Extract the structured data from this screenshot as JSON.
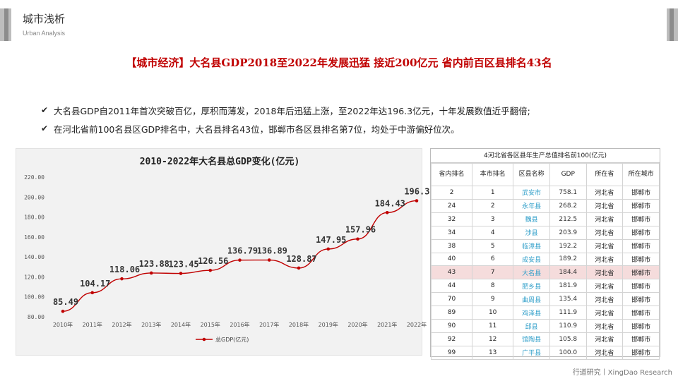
{
  "header": {
    "title": "城市浅析",
    "subtitle": "Urban Analysis"
  },
  "headline": "【城市经济】大名县GDP2018至2022年发展迅猛 接近200亿元 省内前百区县排名43名",
  "bullets": [
    "大名县GDP自2011年首次突破百亿，厚积而薄发，2018年后迅猛上涨，至2022年达196.3亿元，十年发展数值近乎翻倍;",
    "在河北省前100名县区GDP排名中，大名县排名43位，邯郸市各区县排名第7位，均处于中游偏好位次。"
  ],
  "chart_data": {
    "type": "line",
    "title": "2010-2022年大名县总GDP变化(亿元)",
    "categories": [
      "2010年",
      "2011年",
      "2012年",
      "2013年",
      "2014年",
      "2015年",
      "2016年",
      "2017年",
      "2018年",
      "2019年",
      "2020年",
      "2021年",
      "2022年"
    ],
    "series": [
      {
        "name": "总GDP(亿元)",
        "values": [
          85.49,
          104.17,
          118.06,
          123.88,
          123.45,
          126.56,
          136.79,
          136.89,
          128.87,
          147.95,
          157.96,
          184.43,
          196.3
        ]
      }
    ],
    "value_labels": [
      "85.49",
      "104.17",
      "118.06",
      "123.88",
      "123.45",
      "126.56",
      "136.79",
      "136.89",
      "128.87",
      "147.95",
      "157.96",
      "184.43",
      "196.30"
    ],
    "yticks": [
      "80.00",
      "100.00",
      "120.00",
      "140.00",
      "160.00",
      "180.00",
      "200.00",
      "220.00"
    ],
    "ylim": [
      80,
      220
    ],
    "legend": "bottom",
    "color": "#c00000"
  },
  "table": {
    "title": "4河北省各区县年生产总值排名前100(亿元)",
    "headers": [
      "省内排名",
      "本市排名",
      "区县名称",
      "GDP",
      "所在省",
      "所在城市"
    ],
    "rows": [
      [
        "2",
        "1",
        "武安市",
        "758.1",
        "河北省",
        "邯郸市"
      ],
      [
        "24",
        "2",
        "永年县",
        "268.2",
        "河北省",
        "邯郸市"
      ],
      [
        "32",
        "3",
        "魏县",
        "212.5",
        "河北省",
        "邯郸市"
      ],
      [
        "34",
        "4",
        "涉县",
        "203.9",
        "河北省",
        "邯郸市"
      ],
      [
        "38",
        "5",
        "临漳县",
        "192.2",
        "河北省",
        "邯郸市"
      ],
      [
        "40",
        "6",
        "成安县",
        "189.2",
        "河北省",
        "邯郸市"
      ],
      [
        "43",
        "7",
        "大名县",
        "184.4",
        "河北省",
        "邯郸市"
      ],
      [
        "44",
        "8",
        "肥乡县",
        "181.9",
        "河北省",
        "邯郸市"
      ],
      [
        "70",
        "9",
        "曲周县",
        "135.4",
        "河北省",
        "邯郸市"
      ],
      [
        "89",
        "10",
        "鸡泽县",
        "111.9",
        "河北省",
        "邯郸市"
      ],
      [
        "90",
        "11",
        "邱县",
        "110.9",
        "河北省",
        "邯郸市"
      ],
      [
        "92",
        "12",
        "馆陶县",
        "105.8",
        "河北省",
        "邯郸市"
      ],
      [
        "99",
        "13",
        "广平县",
        "100.0",
        "河北省",
        "邯郸市"
      ]
    ],
    "highlight_row": 6
  },
  "footer": "行道研究丨XingDao Research"
}
